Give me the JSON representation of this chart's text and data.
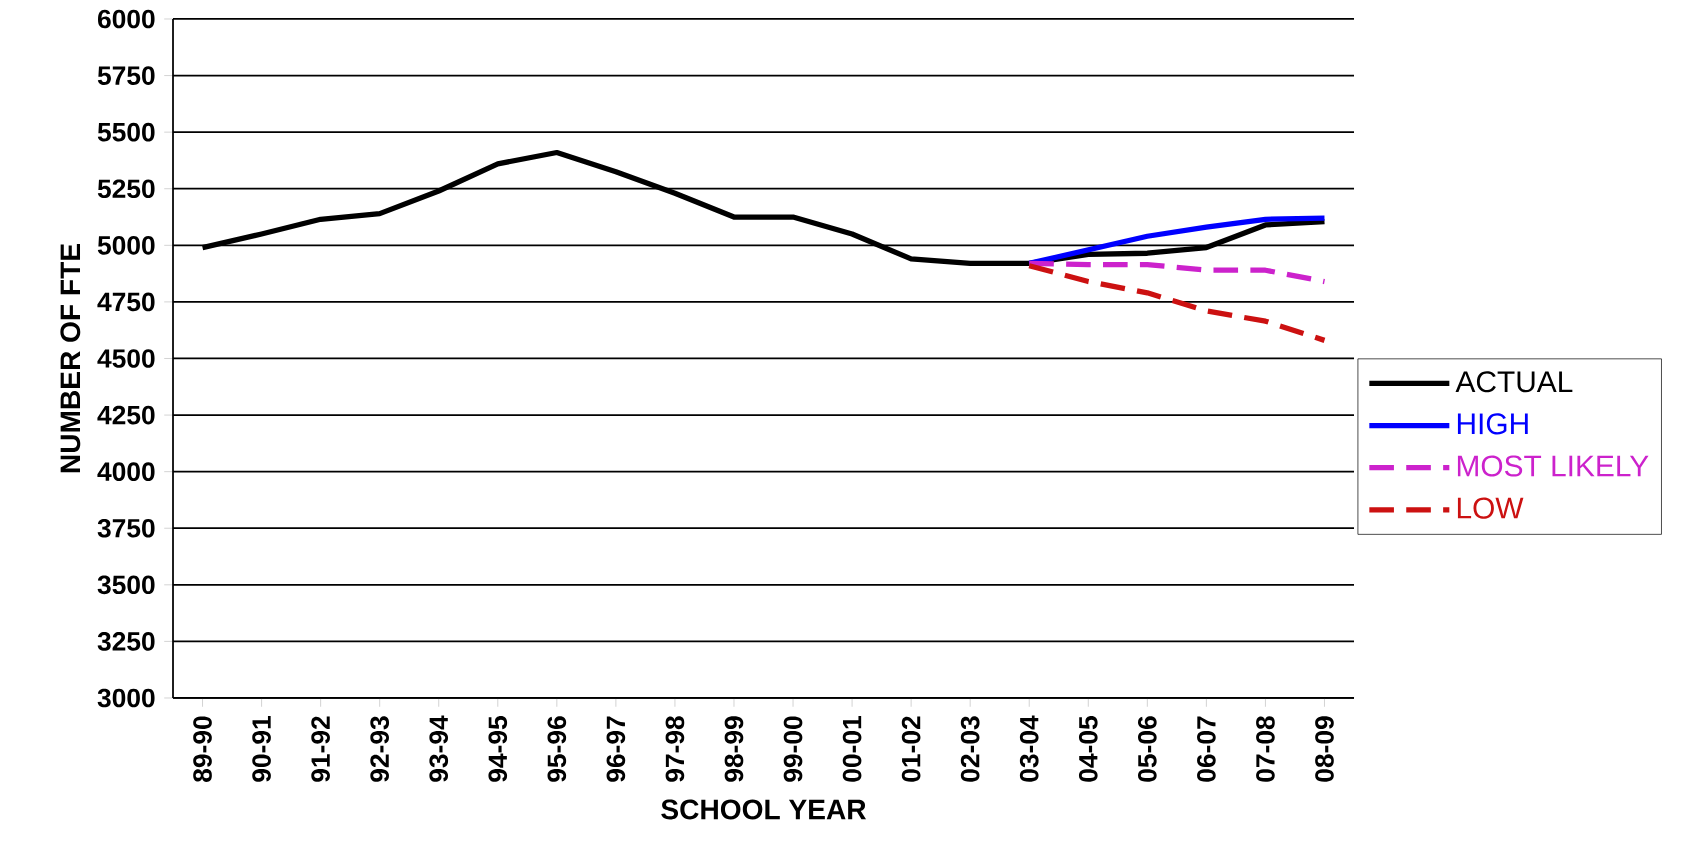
{
  "chart_data": {
    "type": "line",
    "xlabel": "SCHOOL YEAR",
    "ylabel": "NUMBER OF FTE",
    "categories": [
      "89-90",
      "90-91",
      "91-92",
      "92-93",
      "93-94",
      "94-95",
      "95-96",
      "96-97",
      "97-98",
      "98-99",
      "99-00",
      "00-01",
      "01-02",
      "02-03",
      "03-04",
      "04-05",
      "05-06",
      "06-07",
      "07-08",
      "08-09"
    ],
    "series": [
      {
        "name": "ACTUAL",
        "color": "#000000",
        "line_style": "solid",
        "values": [
          4990,
          5050,
          5115,
          5140,
          5240,
          5360,
          5410,
          5325,
          5230,
          5125,
          5125,
          5050,
          4940,
          4920,
          4920,
          4960,
          4965,
          4990,
          5090,
          5105
        ]
      },
      {
        "name": "HIGH",
        "color": "#0000ff",
        "line_style": "solid",
        "values": [
          null,
          null,
          null,
          null,
          null,
          null,
          null,
          null,
          null,
          null,
          null,
          null,
          null,
          null,
          4920,
          4980,
          5040,
          5080,
          5115,
          5120
        ]
      },
      {
        "name": "MOST LIKELY",
        "color": "#cc22cc",
        "line_style": "dashed",
        "values": [
          null,
          null,
          null,
          null,
          null,
          null,
          null,
          null,
          null,
          null,
          null,
          null,
          null,
          null,
          4920,
          4915,
          4915,
          4890,
          4890,
          4840
        ]
      },
      {
        "name": "LOW",
        "color": "#cc1111",
        "line_style": "dashed",
        "values": [
          null,
          null,
          null,
          null,
          null,
          null,
          null,
          null,
          null,
          null,
          null,
          null,
          null,
          null,
          4910,
          4840,
          4790,
          4710,
          4665,
          4580
        ]
      }
    ],
    "ylim": [
      3000,
      6000
    ],
    "yticks": [
      3000,
      3250,
      3500,
      3750,
      4000,
      4250,
      4500,
      4750,
      5000,
      5250,
      5500,
      5750,
      6000
    ],
    "grid": "y",
    "legend": "right",
    "marker": "none"
  }
}
